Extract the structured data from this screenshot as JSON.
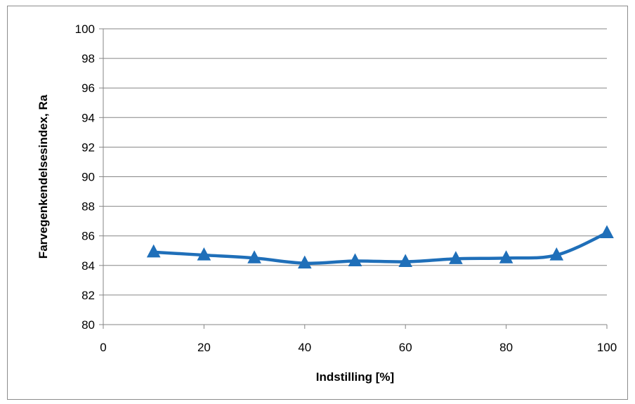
{
  "chart_data": {
    "type": "line",
    "title": "",
    "xlabel": "Indstilling [%]",
    "ylabel": "Farvegenkendelsesindex, Ra",
    "xlim": [
      0,
      100
    ],
    "ylim": [
      80,
      100
    ],
    "xticks": [
      0,
      20,
      40,
      60,
      80,
      100
    ],
    "yticks": [
      80,
      82,
      84,
      86,
      88,
      90,
      92,
      94,
      96,
      98,
      100
    ],
    "grid": "horizontal",
    "legend": "none",
    "series": [
      {
        "color": "#1f6fb9",
        "marker": "triangle",
        "smooth": true,
        "x": [
          10,
          20,
          30,
          40,
          50,
          60,
          70,
          80,
          90,
          100
        ],
        "y": [
          84.9,
          84.7,
          84.5,
          84.15,
          84.3,
          84.25,
          84.45,
          84.5,
          84.7,
          86.2
        ]
      }
    ]
  }
}
